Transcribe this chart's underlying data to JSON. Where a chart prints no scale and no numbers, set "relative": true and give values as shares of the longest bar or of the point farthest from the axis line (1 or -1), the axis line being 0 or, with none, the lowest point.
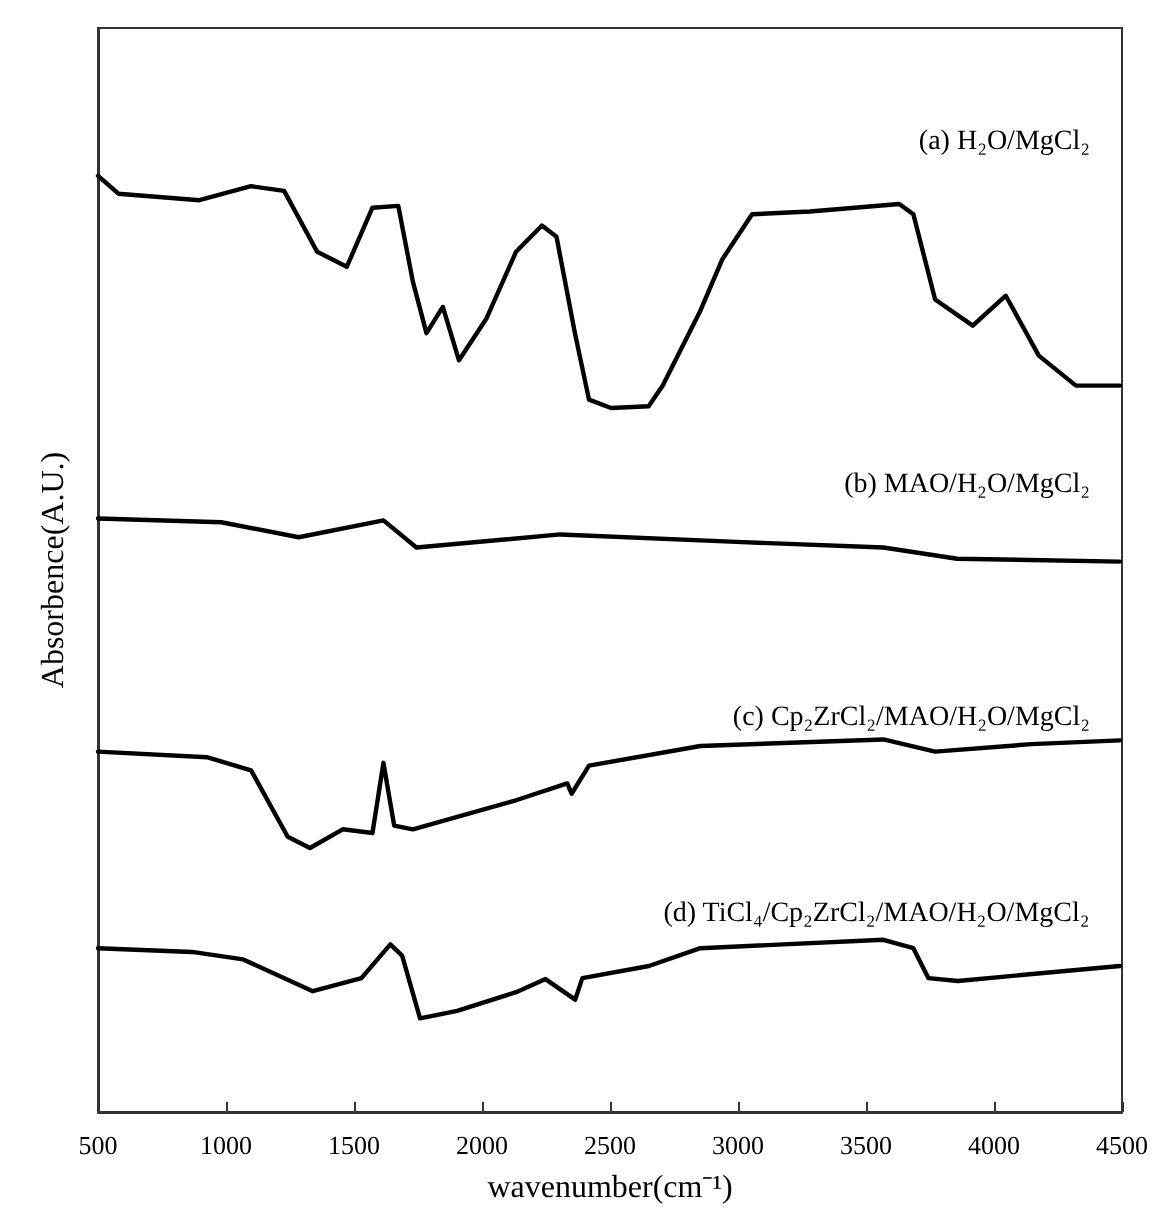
{
  "chart_data": {
    "type": "line",
    "relative": true,
    "xlabel": "wavenumber(cm⁻¹)",
    "ylabel": "Absorbence(A.U.)",
    "xlim": [
      500,
      4500
    ],
    "xticks": [
      500,
      1000,
      1500,
      2000,
      2500,
      3000,
      3500,
      4000,
      4500
    ],
    "legend": false,
    "grid": false,
    "marker": "none",
    "line_style": "solid",
    "series": [
      {
        "name": "(a) H₂O/MgCl₂",
        "color": "#000000",
        "x": [
          500,
          580,
          896,
          1098,
          1227,
          1356,
          1472,
          1572,
          1673,
          1730,
          1783,
          1847,
          1910,
          2018,
          2133,
          2234,
          2291,
          2363,
          2418,
          2504,
          2651,
          2706,
          2853,
          2939,
          3055,
          3281,
          3630,
          3685,
          3770,
          3917,
          4046,
          4175,
          4320,
          4492
        ],
        "values": [
          1.0,
          0.981,
          0.974,
          0.989,
          0.984,
          0.919,
          0.903,
          0.966,
          0.968,
          0.887,
          0.832,
          0.86,
          0.803,
          0.848,
          0.919,
          0.947,
          0.935,
          0.832,
          0.761,
          0.752,
          0.754,
          0.776,
          0.856,
          0.911,
          0.959,
          0.962,
          0.97,
          0.959,
          0.868,
          0.84,
          0.872,
          0.808,
          0.776,
          0.776
        ]
      },
      {
        "name": "(b) MAO/H₂O/MgCl₂",
        "color": "#000000",
        "x": [
          500,
          982,
          1284,
          1615,
          1744,
          2306,
          2994,
          3568,
          3856,
          4492
        ],
        "values": [
          0.634,
          0.63,
          0.614,
          0.632,
          0.603,
          0.617,
          0.609,
          0.603,
          0.591,
          0.588
        ]
      },
      {
        "name": "(c) Cp₂ZrCl₂/MAO/H₂O/MgCl₂",
        "color": "#000000",
        "x": [
          500,
          925,
          1098,
          1241,
          1328,
          1456,
          1572,
          1615,
          1657,
          1730,
          2133,
          2333,
          2350,
          2418,
          2853,
          3568,
          3770,
          4147,
          4492
        ],
        "values": [
          0.385,
          0.379,
          0.365,
          0.294,
          0.282,
          0.302,
          0.298,
          0.373,
          0.306,
          0.302,
          0.333,
          0.351,
          0.34,
          0.37,
          0.391,
          0.398,
          0.385,
          0.393,
          0.397
        ]
      },
      {
        "name": "(d) TiCl₄/Cp₂ZrCl₂/MAO/H₂O/MgCl₂",
        "color": "#000000",
        "x": [
          500,
          867,
          1067,
          1339,
          1529,
          1642,
          1688,
          1758,
          1903,
          2133,
          2248,
          2364,
          2392,
          2652,
          2853,
          3568,
          3685,
          3744,
          3859,
          4492
        ],
        "values": [
          0.175,
          0.171,
          0.163,
          0.129,
          0.143,
          0.179,
          0.167,
          0.1,
          0.108,
          0.128,
          0.142,
          0.12,
          0.143,
          0.156,
          0.175,
          0.184,
          0.175,
          0.143,
          0.14,
          0.156
        ]
      }
    ]
  }
}
